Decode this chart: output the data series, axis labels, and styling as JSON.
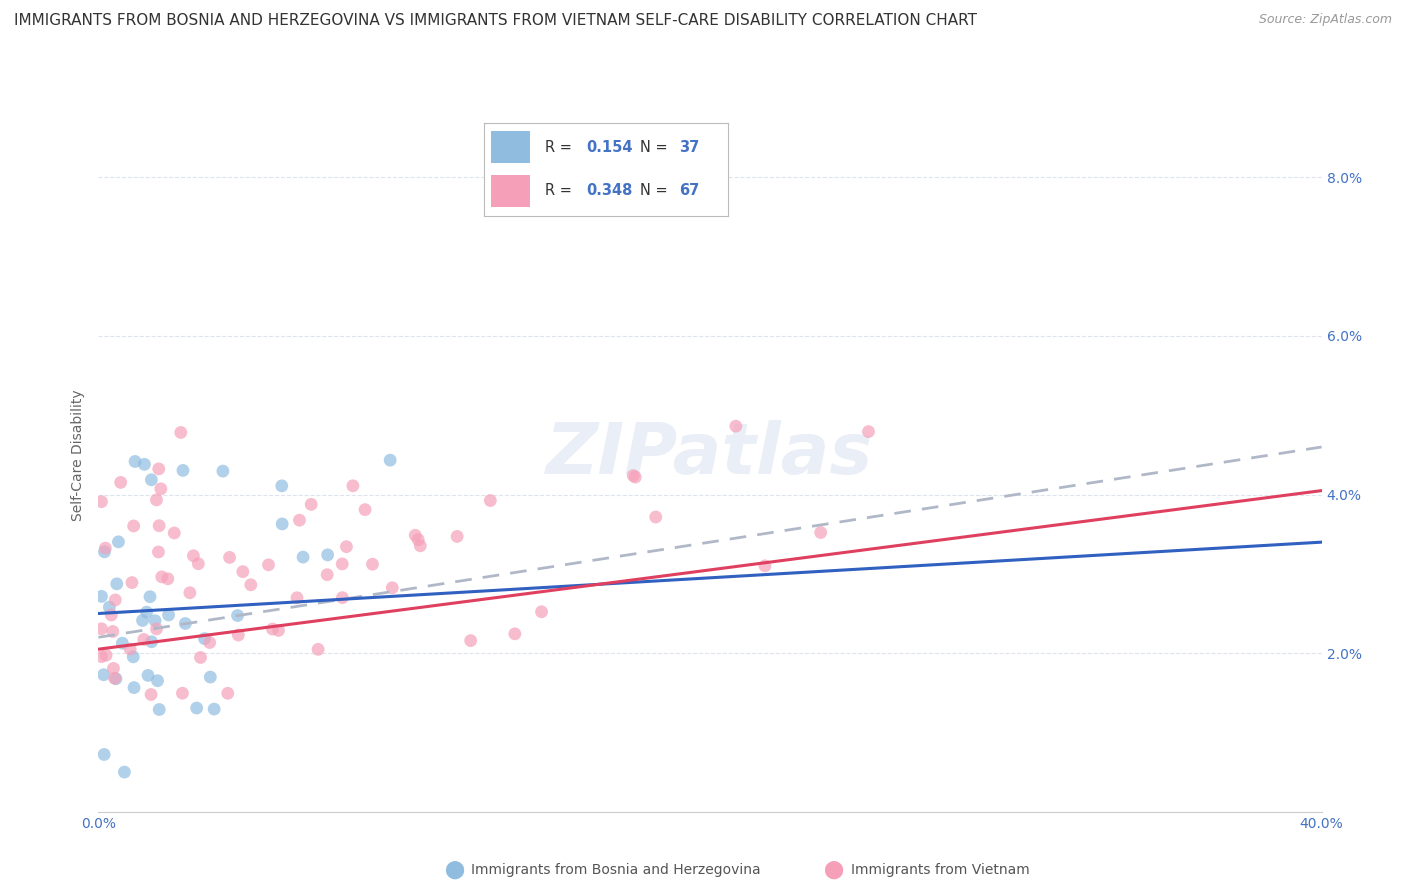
{
  "title": "IMMIGRANTS FROM BOSNIA AND HERZEGOVINA VS IMMIGRANTS FROM VIETNAM SELF-CARE DISABILITY CORRELATION CHART",
  "source": "Source: ZipAtlas.com",
  "ylabel": "Self-Care Disability",
  "xlim": [
    0.0,
    0.4
  ],
  "ylim": [
    0.0,
    0.09
  ],
  "bosnia_color": "#90bce0",
  "vietnam_color": "#f5a0b8",
  "bosnia_line_color": "#3060c0",
  "vietnam_line_color": "#e04060",
  "dash_line_color": "#b0b8c8",
  "background_color": "#ffffff",
  "grid_color": "#dde4ee",
  "title_fontsize": 11,
  "source_fontsize": 9,
  "axis_label_fontsize": 10,
  "tick_fontsize": 10,
  "legend_fontsize": 11,
  "scatter_alpha": 0.7,
  "scatter_size": 85,
  "bosnia_trendline": [
    0.0,
    0.4,
    0.025,
    0.034
  ],
  "vietnam_trendline": [
    0.0,
    0.4,
    0.0205,
    0.0405
  ],
  "dash_trendline": [
    0.0,
    0.4,
    0.022,
    0.046
  ]
}
